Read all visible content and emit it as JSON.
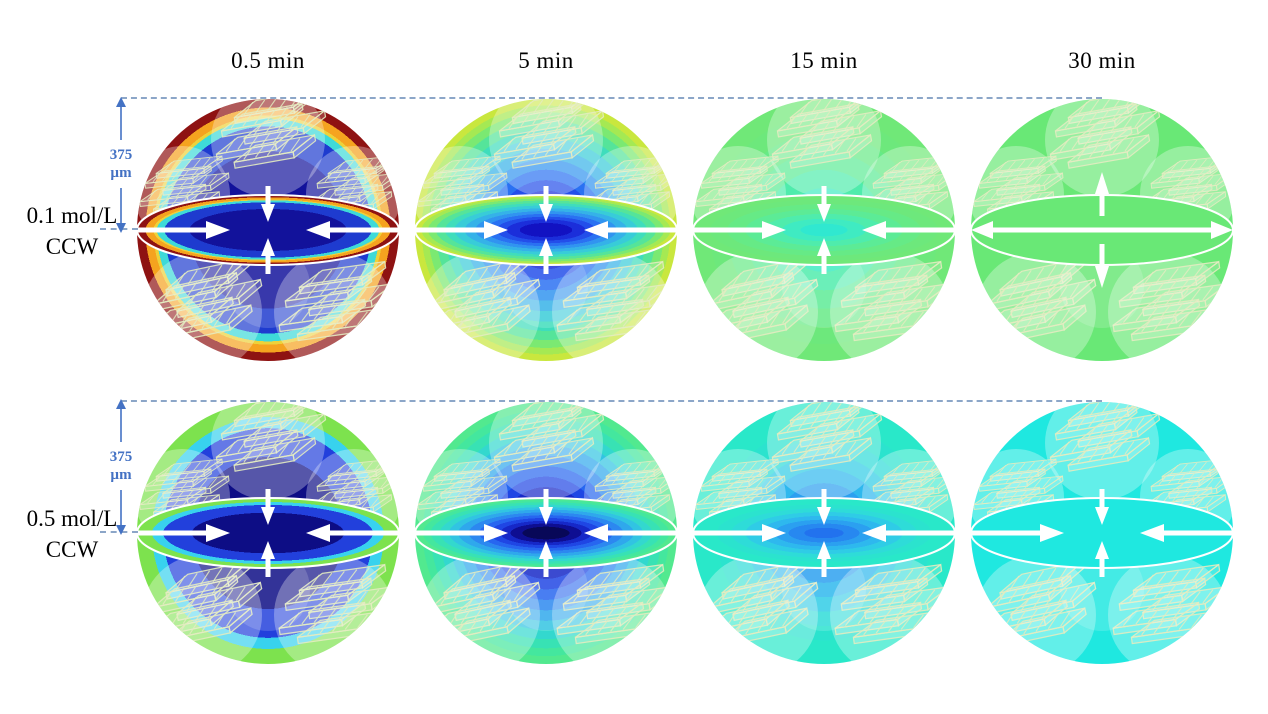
{
  "figure": {
    "title_columns": [
      "0.5 min",
      "5 min",
      "15 min",
      "30 min"
    ],
    "rows": [
      {
        "label_line1": "0.1 mol/L",
        "label_line2": "CCW",
        "scale": {
          "value": "375",
          "unit": "µm"
        },
        "spheres": [
          {
            "name": "0.1 mol/L CCW at 0.5 min",
            "arrow_direction": "inward",
            "bands": [
              {
                "color": "#12129B",
                "to": 0.6
              },
              {
                "color": "#1E3BCF",
                "to": 0.79
              },
              {
                "color": "#3EDAD8",
                "to": 0.85
              },
              {
                "color": "#EDD23A",
                "to": 0.875
              },
              {
                "color": "#F5A31F",
                "to": 0.935
              },
              {
                "color": "#8E1212",
                "to": 1
              }
            ]
          },
          {
            "name": "0.1 mol/L CCW at 5 min",
            "arrow_direction": "inward",
            "bands": [
              {
                "color": "#1212C2",
                "to": 0.2
              },
              {
                "color": "#1B2EDA",
                "to": 0.3
              },
              {
                "color": "#234EEA",
                "to": 0.38
              },
              {
                "color": "#2A71F2",
                "to": 0.46
              },
              {
                "color": "#3194F0",
                "to": 0.54
              },
              {
                "color": "#35B2E8",
                "to": 0.62
              },
              {
                "color": "#38CCD8",
                "to": 0.7
              },
              {
                "color": "#3FDDBC",
                "to": 0.77
              },
              {
                "color": "#55E49A",
                "to": 0.84
              },
              {
                "color": "#7BE972",
                "to": 0.9
              },
              {
                "color": "#A5E953",
                "to": 0.95
              },
              {
                "color": "#C9E73E",
                "to": 1
              }
            ]
          },
          {
            "name": "0.1 mol/L CCW at 15 min",
            "arrow_direction": "inward",
            "bands": [
              {
                "color": "#30E8D0",
                "to": 0.18
              },
              {
                "color": "#3FEBC2",
                "to": 0.32
              },
              {
                "color": "#4FECAC",
                "to": 0.46
              },
              {
                "color": "#5CEB96",
                "to": 0.6
              },
              {
                "color": "#66EA86",
                "to": 0.74
              },
              {
                "color": "#6DE87C",
                "to": 0.87
              },
              {
                "color": "#70E878",
                "to": 1
              }
            ]
          },
          {
            "name": "0.1 mol/L CCW at 30 min",
            "arrow_direction": "outward",
            "bands": [
              {
                "color": "#69E876",
                "to": 1
              }
            ]
          }
        ]
      },
      {
        "label_line1": "0.5 mol/L",
        "label_line2": "CCW",
        "scale": {
          "value": "375",
          "unit": "µm"
        },
        "spheres": [
          {
            "name": "0.5 mol/L CCW at 0.5 min",
            "arrow_direction": "inward",
            "bands": [
              {
                "color": "#0D0D85",
                "to": 0.58
              },
              {
                "color": "#2240DC",
                "to": 0.8
              },
              {
                "color": "#38D2EE",
                "to": 0.885
              },
              {
                "color": "#7DE24E",
                "to": 1
              }
            ]
          },
          {
            "name": "0.5 mol/L CCW at 5 min",
            "arrow_direction": "inward",
            "bands": [
              {
                "color": "#080858",
                "to": 0.18
              },
              {
                "color": "#0E0E92",
                "to": 0.27
              },
              {
                "color": "#1628C8",
                "to": 0.35
              },
              {
                "color": "#1F46E4",
                "to": 0.43
              },
              {
                "color": "#2766F0",
                "to": 0.51
              },
              {
                "color": "#2C88F0",
                "to": 0.59
              },
              {
                "color": "#2FA8EC",
                "to": 0.67
              },
              {
                "color": "#31C4E2",
                "to": 0.74
              },
              {
                "color": "#33D8CE",
                "to": 0.81
              },
              {
                "color": "#38E2B4",
                "to": 0.88
              },
              {
                "color": "#44E79E",
                "to": 0.94
              },
              {
                "color": "#52E98F",
                "to": 1
              }
            ]
          },
          {
            "name": "0.5 mol/L CCW at 15 min",
            "arrow_direction": "inward",
            "bands": [
              {
                "color": "#2272EE",
                "to": 0.15
              },
              {
                "color": "#2788F0",
                "to": 0.27
              },
              {
                "color": "#2BA0F0",
                "to": 0.38
              },
              {
                "color": "#2EB8EE",
                "to": 0.49
              },
              {
                "color": "#2FCCE6",
                "to": 0.6
              },
              {
                "color": "#2EDCD8",
                "to": 0.71
              },
              {
                "color": "#2BE3CE",
                "to": 0.82
              },
              {
                "color": "#29E8C9",
                "to": 1
              }
            ]
          },
          {
            "name": "0.5 mol/L CCW at 30 min",
            "arrow_direction": "inward",
            "bands": [
              {
                "color": "#1FE8E0",
                "to": 1
              }
            ]
          }
        ]
      }
    ],
    "colors": {
      "background": "#FFFFFF",
      "annotation": "#4472C4",
      "dash": "#8CA6C8",
      "arrow": "#FFFFFF",
      "label_text": "#000000",
      "cluster_fill": "rgba(255,255,255,0.30)",
      "slab_stroke": "#E3EBC0"
    }
  }
}
